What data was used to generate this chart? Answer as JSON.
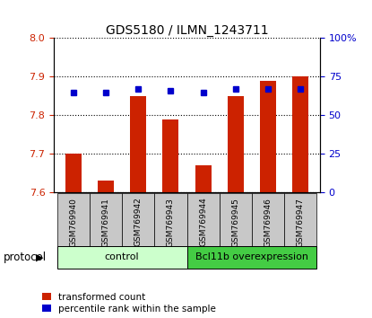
{
  "title": "GDS5180 / ILMN_1243711",
  "samples": [
    "GSM769940",
    "GSM769941",
    "GSM769942",
    "GSM769943",
    "GSM769944",
    "GSM769945",
    "GSM769946",
    "GSM769947"
  ],
  "transformed_counts": [
    7.7,
    7.63,
    7.85,
    7.79,
    7.67,
    7.85,
    7.89,
    7.9
  ],
  "percentile_ranks": [
    65,
    65,
    67,
    66,
    65,
    67,
    67,
    67
  ],
  "ylim_left": [
    7.6,
    8.0
  ],
  "ylim_right": [
    0,
    100
  ],
  "yticks_left": [
    7.6,
    7.7,
    7.8,
    7.9,
    8.0
  ],
  "yticks_right": [
    0,
    25,
    50,
    75,
    100
  ],
  "bar_color": "#cc2200",
  "dot_color": "#0000cc",
  "bar_width": 0.5,
  "groups": [
    {
      "label": "control",
      "indices": [
        0,
        1,
        2,
        3
      ],
      "color": "#ccffcc"
    },
    {
      "label": "Bcl11b overexpression",
      "indices": [
        4,
        5,
        6,
        7
      ],
      "color": "#44cc44"
    }
  ],
  "protocol_label": "protocol",
  "legend_items": [
    {
      "label": "transformed count",
      "color": "#cc2200"
    },
    {
      "label": "percentile rank within the sample",
      "color": "#0000cc"
    }
  ],
  "background_color": "#ffffff",
  "plot_bg_color": "#ffffff",
  "tick_label_color_left": "#cc2200",
  "tick_label_color_right": "#0000cc",
  "xticklabel_bg": "#c8c8c8"
}
